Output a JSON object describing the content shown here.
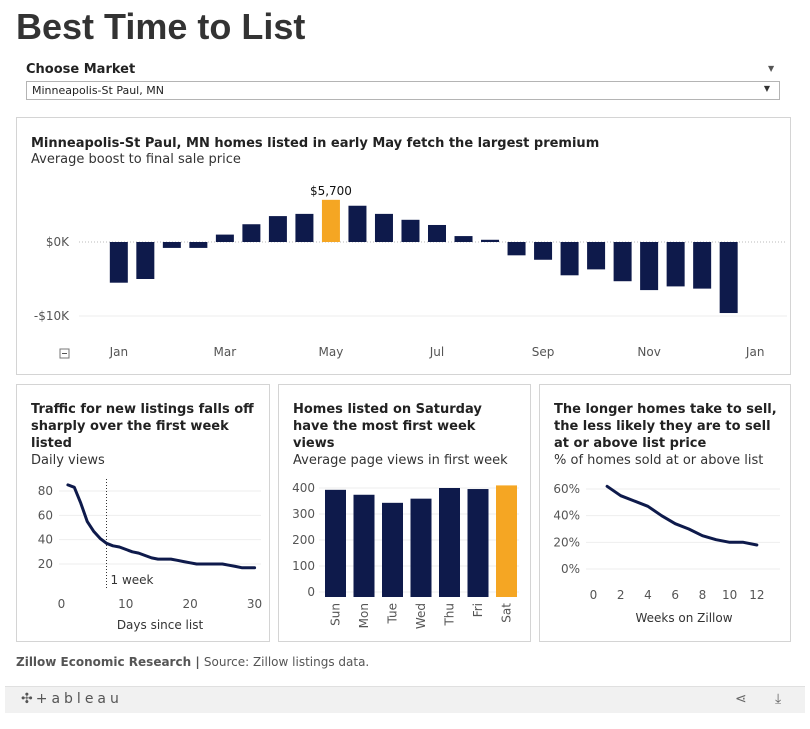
{
  "page": {
    "title": "Best Time to List"
  },
  "filter": {
    "label": "Choose Market",
    "value": "Minneapolis-St Paul, MN"
  },
  "colors": {
    "bar": "#0e1a4b",
    "highlight": "#f5a623",
    "grid": "#eeeeee",
    "zero": "#bbbbbb"
  },
  "panel1": {
    "title": "Minneapolis-St Paul, MN homes listed in early May fetch the largest premium",
    "subtitle": "Average boost to final sale price",
    "collapse_icon": "minus-box-icon"
  },
  "panel2": {
    "title_lines": [
      "Traffic for new listings falls off",
      "sharply over the first week",
      "listed"
    ],
    "subtitle": "Daily views",
    "annotation": "1 week"
  },
  "panel3": {
    "title_lines": [
      "Homes listed on Saturday",
      "have the most first week",
      "views"
    ],
    "subtitle": "Average page views in first week"
  },
  "panel4": {
    "title_lines": [
      "The longer homes take to sell,",
      "the less likely they are to sell",
      "at or above list price"
    ],
    "subtitle": "% of homes sold at or above list"
  },
  "footer": {
    "org": "Zillow Economic Research",
    "sep": " | ",
    "source": "Source: Zillow listings data."
  },
  "toolbar": {
    "logo": "+ableau",
    "logo_icon": "tableau-cross-icon",
    "share_icon": "share-icon",
    "download_icon": "download-icon"
  },
  "chart_data": [
    {
      "type": "bar",
      "x": [
        1.0,
        1.5,
        2.0,
        2.5,
        3.0,
        3.5,
        4.0,
        4.5,
        5.0,
        5.5,
        6.0,
        6.5,
        7.0,
        7.5,
        8.0,
        8.5,
        9.0,
        9.5,
        10.0,
        10.5,
        11.0,
        11.5,
        12.0,
        12.5
      ],
      "values": [
        -5500,
        -5000,
        -800,
        -800,
        1000,
        2400,
        3500,
        3800,
        5700,
        4900,
        3800,
        3000,
        2300,
        800,
        300,
        -1800,
        -2400,
        -4500,
        -3700,
        -5300,
        -6500,
        -6000,
        -6300,
        -9600
      ],
      "highlight_index": 8,
      "highlight_label": "$5,700",
      "xticks": [
        {
          "label": "Jan",
          "value": 1.0
        },
        {
          "label": "Mar",
          "value": 3.0
        },
        {
          "label": "May",
          "value": 5.0
        },
        {
          "label": "Jul",
          "value": 7.0
        },
        {
          "label": "Sep",
          "value": 9.0
        },
        {
          "label": "Nov",
          "value": 11.0
        },
        {
          "label": "Jan",
          "value": 13.0
        }
      ],
      "yticks": [
        {
          "label": "$0K",
          "value": 0
        },
        {
          "label": "-$10K",
          "value": -10000
        }
      ],
      "xlim": [
        0.4,
        13.6
      ],
      "ylim": [
        -10000,
        5700
      ]
    },
    {
      "type": "line",
      "x": [
        1,
        2,
        3,
        4,
        5,
        6,
        7,
        8,
        9,
        10,
        11,
        12,
        13,
        14,
        15,
        16,
        17,
        18,
        19,
        20,
        21,
        22,
        23,
        24,
        25,
        26,
        27,
        28,
        29,
        30
      ],
      "y": [
        85,
        83,
        70,
        55,
        47,
        41,
        37,
        35,
        34,
        32,
        30,
        29,
        27,
        25,
        24,
        24,
        24,
        23,
        22,
        21,
        20,
        20,
        20,
        20,
        20,
        19,
        18,
        17,
        17,
        17
      ],
      "xlabel": "Days since list",
      "xticks": [
        0,
        10,
        20,
        30
      ],
      "yticks": [
        20,
        40,
        60,
        80
      ],
      "xlim": [
        -1,
        31
      ],
      "ylim": [
        11,
        90
      ],
      "vline": 7
    },
    {
      "type": "bar",
      "categories": [
        "Sun",
        "Mon",
        "Tue",
        "Wed",
        "Thu",
        "Fri",
        "Sat"
      ],
      "values": [
        393,
        374,
        343,
        359,
        400,
        396,
        410
      ],
      "highlight_index": 6,
      "yticks": [
        0,
        100,
        200,
        300,
        400
      ],
      "ylim": [
        0,
        430
      ]
    },
    {
      "type": "line",
      "x": [
        1,
        2,
        3,
        4,
        5,
        6,
        7,
        8,
        9,
        10,
        11,
        12
      ],
      "y": [
        62,
        55,
        51,
        47,
        40,
        34,
        30,
        25,
        22,
        20,
        20,
        18
      ],
      "xlabel": "Weeks on Zillow",
      "xticks": [
        0,
        2,
        4,
        6,
        8,
        10,
        12
      ],
      "yticks": [
        {
          "label": "0%",
          "value": 0
        },
        {
          "label": "20%",
          "value": 20
        },
        {
          "label": "40%",
          "value": 40
        },
        {
          "label": "60%",
          "value": 60
        }
      ],
      "xlim": [
        -0.4,
        13.4
      ],
      "ylim": [
        0,
        70
      ]
    }
  ]
}
